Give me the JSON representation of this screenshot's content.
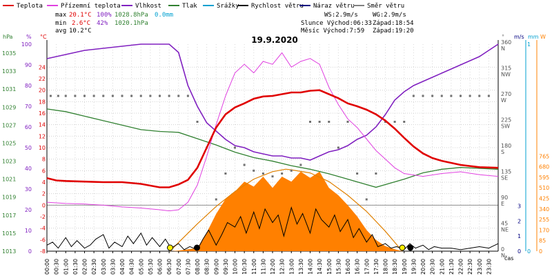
{
  "legend": [
    {
      "label": "Teplota",
      "color": "#e00000"
    },
    {
      "label": "Přízemní teplota",
      "color": "#e040e0"
    },
    {
      "label": "Vlhkost",
      "color": "#8020c0"
    },
    {
      "label": "Tlak",
      "color": "#308030"
    },
    {
      "label": "Srážky",
      "color": "#00a0d0"
    },
    {
      "label": "Rychlost větru",
      "color": "#000000"
    },
    {
      "label": "Náraz větru",
      "color": "#000080"
    },
    {
      "label": "Směr větru",
      "color": "#808080"
    }
  ],
  "stats": {
    "max_label": "max",
    "max_temp": "20.1°C",
    "max_hum": "100%",
    "max_press": "1028.8hPa",
    "max_rain": "0.0mm",
    "min_label": "min",
    "min_temp": "2.6°C",
    "min_hum": "42%",
    "min_press": "1020.1hPa",
    "avg_label": "avg",
    "avg_temp": "10.2°C"
  },
  "wind_info": {
    "ws": "WS:2.9m/s",
    "wg": "WG:2.9m/s"
  },
  "sun_info": {
    "sunrise": "Slunce Východ:06:33",
    "sunset": "Západ:18:54"
  },
  "moon_info": {
    "moonrise": "Měsíc Východ:7:59",
    "moonset": "Západ:19:20"
  },
  "date": "19.9.2020",
  "axis_units": {
    "hpa": "hPa",
    "pct": "%",
    "temp": "°C",
    "dir": "°",
    "ms": "m/s",
    "mm": "mm",
    "wm2": "W",
    "time": "čas"
  },
  "colors": {
    "temp": "#e00000",
    "ground": "#e040e0",
    "hum": "#8020c0",
    "press": "#308030",
    "rain": "#00a0d0",
    "wind": "#000000",
    "gust": "#000080",
    "dir": "#707070",
    "solar": "#ff8000",
    "sun_curve": "#e08000"
  },
  "chart_data": {
    "type": "line",
    "x_hours": [
      0,
      24
    ],
    "y_left": {
      "pressure_ticks": [
        1013,
        1015,
        1017,
        1019,
        1021,
        1023,
        1025,
        1027,
        1029,
        1031,
        1033,
        1035
      ],
      "humidity_ticks": [
        0,
        10,
        20,
        30,
        40,
        50,
        60,
        70,
        80,
        90,
        100
      ],
      "temp_ticks": [
        -8,
        -6,
        -4,
        -2,
        0,
        2,
        4,
        6,
        8,
        10,
        12,
        14,
        16,
        18,
        20,
        22,
        24
      ],
      "temp_range": [
        -8,
        28
      ]
    },
    "y_right": {
      "dir_ticks": [
        {
          "v": 0,
          "t": "0",
          "d": "N"
        },
        {
          "v": 45,
          "t": "45",
          "d": "NE"
        },
        {
          "v": 90,
          "t": "90",
          "d": "E"
        },
        {
          "v": 135,
          "t": "135",
          "d": "SE"
        },
        {
          "v": 180,
          "t": "180",
          "d": "S"
        },
        {
          "v": 225,
          "t": "225",
          "d": "SW"
        },
        {
          "v": 270,
          "t": "270",
          "d": "W"
        },
        {
          "v": 315,
          "t": "315",
          "d": "NW"
        },
        {
          "v": 360,
          "t": "360",
          "d": "N"
        }
      ],
      "ms_ticks": [
        0,
        1,
        2,
        3
      ],
      "mm_ticks": [
        0,
        1
      ],
      "wm2_ticks": [
        0,
        85,
        170,
        255,
        340,
        425,
        510,
        595,
        680,
        765
      ]
    },
    "x_ticks": [
      "00:00",
      "00:30",
      "01:00",
      "01:30",
      "02:00",
      "02:30",
      "03:00",
      "03:30",
      "04:00",
      "04:30",
      "05:00",
      "05:30",
      "06:00",
      "06:30",
      "07:00",
      "07:30",
      "08:00",
      "08:30",
      "09:00",
      "09:30",
      "10:00",
      "10:30",
      "11:00",
      "11:30",
      "12:00",
      "12:30",
      "13:00",
      "13:30",
      "14:00",
      "14:30",
      "15:00",
      "15:30",
      "16:00",
      "16:30",
      "17:00",
      "17:30",
      "18:00",
      "18:30",
      "19:00",
      "19:30",
      "20:00",
      "20:30",
      "21:00",
      "21:30",
      "22:00",
      "22:30",
      "23:00",
      "23:30"
    ],
    "series": [
      {
        "name": "Teplota",
        "unit": "°C",
        "x": [
          0,
          0.5,
          1,
          2,
          3,
          4,
          5,
          6,
          6.5,
          7,
          7.5,
          8,
          8.5,
          9,
          9.5,
          10,
          10.5,
          11,
          11.5,
          12,
          12.5,
          13,
          13.5,
          14,
          14.5,
          15,
          15.5,
          16,
          16.5,
          17,
          17.5,
          18,
          18.5,
          19,
          19.5,
          20,
          20.5,
          21,
          22,
          23,
          24
        ],
        "y": [
          4.7,
          4.3,
          4.2,
          4.1,
          4.0,
          4.0,
          3.7,
          3.1,
          3.1,
          3.6,
          4.4,
          6.5,
          10.0,
          13.5,
          15.8,
          17.0,
          17.7,
          18.5,
          18.9,
          19.0,
          19.3,
          19.6,
          19.6,
          19.9,
          20.0,
          19.3,
          18.6,
          17.7,
          17.2,
          16.6,
          15.8,
          14.7,
          13.3,
          11.7,
          10.2,
          9.0,
          8.2,
          7.7,
          7.0,
          6.6,
          6.5
        ]
      },
      {
        "name": "Přízemní teplota",
        "unit": "°C",
        "x": [
          0,
          1,
          2,
          3,
          4,
          5,
          6,
          6.5,
          7,
          7.5,
          8,
          8.5,
          9,
          9.5,
          10,
          10.5,
          11,
          11.5,
          12,
          12.5,
          13,
          13.5,
          14,
          14.5,
          15,
          15.5,
          16,
          16.5,
          17,
          17.5,
          18,
          18.5,
          19,
          20,
          21,
          22,
          23,
          24
        ],
        "y": [
          0.5,
          0.3,
          0.2,
          0.0,
          -0.3,
          -0.5,
          -0.8,
          -1.0,
          -0.8,
          0.5,
          3.5,
          8.5,
          14.0,
          19.0,
          23.0,
          24.5,
          23.0,
          25.0,
          24.5,
          26.5,
          24.0,
          25.0,
          25.5,
          24.5,
          20.5,
          17.5,
          15.0,
          13.5,
          11.5,
          9.5,
          8.0,
          6.5,
          5.5,
          5.0,
          5.5,
          5.8,
          5.3,
          5.0
        ]
      },
      {
        "name": "Vlhkost",
        "unit": "%",
        "x": [
          0,
          0.5,
          1,
          1.5,
          2,
          3,
          4,
          5,
          6,
          6.5,
          7,
          7.5,
          8,
          8.5,
          9,
          9.5,
          10,
          10.5,
          11,
          11.5,
          12,
          12.5,
          13,
          13.5,
          14,
          14.5,
          15,
          15.5,
          16,
          16.5,
          17,
          17.5,
          18,
          18.5,
          19,
          19.5,
          20,
          20.5,
          21,
          21.5,
          22,
          22.5,
          23,
          23.5,
          24
        ],
        "y": [
          93,
          94,
          95,
          96,
          97,
          98,
          99,
          100,
          100,
          100,
          96,
          80,
          70,
          62,
          58,
          54,
          51,
          50,
          48,
          47,
          46,
          46,
          45,
          45,
          44,
          46,
          48,
          49,
          51,
          54,
          56,
          60,
          66,
          73,
          77,
          80,
          82,
          84,
          86,
          88,
          90,
          92,
          94,
          97,
          100
        ]
      },
      {
        "name": "Tlak",
        "unit": "hPa",
        "x": [
          0,
          1,
          2,
          3,
          4,
          5,
          6,
          7,
          8,
          9,
          10,
          11,
          12,
          13,
          14,
          15,
          16,
          17,
          17.5,
          18,
          19,
          20,
          21,
          22,
          23,
          24
        ],
        "y": [
          1028.8,
          1028.5,
          1028.0,
          1027.5,
          1027.0,
          1026.5,
          1026.3,
          1026.2,
          1025.5,
          1024.8,
          1024.0,
          1023.4,
          1023.0,
          1022.5,
          1022.1,
          1021.6,
          1021.0,
          1020.4,
          1020.1,
          1020.4,
          1021.0,
          1021.7,
          1022.1,
          1022.3,
          1022.2,
          1022.1
        ]
      }
    ],
    "wind_speed": {
      "unit": "m/s",
      "x": [
        0,
        0.3,
        0.6,
        1,
        1.3,
        1.6,
        2,
        2.3,
        2.6,
        3,
        3.3,
        3.6,
        4,
        4.3,
        4.6,
        5,
        5.3,
        5.6,
        6,
        6.3,
        6.6,
        7,
        7.3,
        7.6,
        8,
        8.3,
        8.6,
        9,
        9.3,
        9.6,
        10,
        10.3,
        10.6,
        11,
        11.3,
        11.6,
        12,
        12.3,
        12.6,
        13,
        13.3,
        13.6,
        14,
        14.3,
        14.6,
        15,
        15.3,
        15.6,
        16,
        16.3,
        16.6,
        17,
        17.3,
        17.6,
        18,
        18.3,
        18.6,
        19,
        19.3,
        19.6,
        20,
        20.3,
        20.6,
        21,
        21.5,
        22,
        22.5,
        23,
        23.5,
        24
      ],
      "y": [
        0.4,
        0.6,
        0.2,
        0.9,
        0.3,
        0.7,
        0.2,
        0.4,
        0.8,
        1.1,
        0.2,
        0.6,
        0.3,
        1.0,
        0.5,
        1.2,
        0.4,
        0.9,
        0.3,
        0.8,
        0.2,
        0.5,
        0.1,
        0.3,
        0.1,
        0.8,
        1.4,
        0.4,
        1.1,
        1.9,
        1.6,
        2.3,
        1.2,
        2.6,
        1.5,
        2.8,
        1.9,
        2.4,
        1.0,
        2.9,
        1.8,
        2.5,
        1.2,
        2.8,
        2.1,
        1.6,
        2.4,
        1.3,
        2.1,
        0.9,
        1.5,
        0.6,
        1.1,
        0.3,
        0.5,
        0.2,
        0.3,
        0.1,
        0.5,
        0.2,
        0.4,
        0.1,
        0.3,
        0.2,
        0.2,
        0.1,
        0.2,
        0.3,
        0.2,
        0.5
      ]
    },
    "wind_gust_peak": 2.9,
    "solar": {
      "unit": "W/m²",
      "x": [
        6.6,
        7,
        8,
        8.5,
        9,
        9.5,
        10,
        10.5,
        11,
        11.5,
        12,
        12.5,
        13,
        13.5,
        14,
        14.5,
        15,
        15.5,
        16,
        16.5,
        17,
        17.5,
        18,
        18.5,
        18.9
      ],
      "y": [
        0,
        5,
        25,
        150,
        300,
        420,
        480,
        560,
        520,
        600,
        510,
        600,
        560,
        640,
        590,
        640,
        510,
        450,
        370,
        280,
        170,
        90,
        40,
        15,
        0
      ]
    },
    "sun_curve": {
      "unit": "W/m²",
      "x": [
        6.55,
        7,
        8,
        9,
        10,
        11,
        12,
        12.7,
        13,
        14,
        15,
        16,
        17,
        18,
        18.9
      ],
      "y": [
        0,
        70,
        220,
        360,
        480,
        580,
        640,
        660,
        655,
        630,
        560,
        450,
        320,
        160,
        0
      ]
    },
    "wind_dir": {
      "unit": "°",
      "x": [
        0.2,
        0.6,
        1,
        1.5,
        2,
        2.5,
        3,
        3.5,
        4,
        4.5,
        5,
        5.5,
        6,
        6.5,
        7,
        7.5,
        8,
        8.5,
        9,
        9.5,
        10,
        10.5,
        11,
        11.5,
        12,
        12.5,
        13,
        13.5,
        14,
        14.5,
        15,
        15.5,
        16,
        16.5,
        17,
        17.5,
        18,
        18.5,
        19,
        19.5,
        20,
        20.5,
        21,
        21.5,
        22,
        22.5,
        23,
        23.5
      ],
      "y": [
        270,
        270,
        270,
        270,
        270,
        270,
        270,
        270,
        270,
        270,
        270,
        270,
        270,
        270,
        270,
        270,
        225,
        180,
        90,
        135,
        180,
        150,
        140,
        135,
        130,
        135,
        140,
        150,
        225,
        225,
        225,
        180,
        225,
        135,
        90,
        135,
        225,
        225,
        225,
        270,
        270,
        270,
        270,
        270,
        270,
        270,
        270,
        270
      ]
    },
    "markers": [
      {
        "kind": "sunrise",
        "x": 6.55
      },
      {
        "kind": "moonrise",
        "x": 7.98
      },
      {
        "kind": "sunset",
        "x": 18.9
      },
      {
        "kind": "moonset",
        "x": 19.33
      }
    ]
  }
}
